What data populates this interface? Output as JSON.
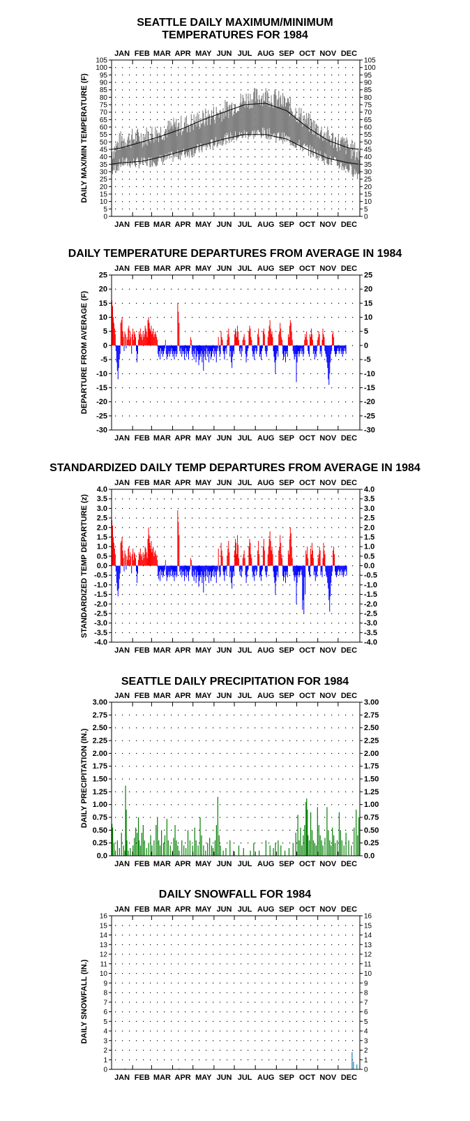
{
  "months": [
    "JAN",
    "FEB",
    "MAR",
    "APR",
    "MAY",
    "JUN",
    "JUL",
    "AUG",
    "SEP",
    "OCT",
    "NOV",
    "DEC"
  ],
  "colors": {
    "maxmin_band": "#808080",
    "normals": "#000000",
    "positive": "#ff0000",
    "negative": "#0000ff",
    "precip": "#008000",
    "snow": "#1f7fb0",
    "grid_dots": "#000000"
  },
  "chart_data": [
    {
      "id": "maxmin",
      "type": "area",
      "title_lines": [
        "SEATTLE DAILY MAXIMUM/MINIMUM",
        "TEMPERATURES FOR 1984"
      ],
      "ylabel": "DAILY MAX/MIN TEMPERATURE (F)",
      "xlabel": "",
      "ylim": [
        0,
        105
      ],
      "yticks": [
        0,
        5,
        10,
        15,
        20,
        25,
        30,
        35,
        40,
        45,
        50,
        55,
        60,
        65,
        70,
        75,
        80,
        85,
        90,
        95,
        100,
        105
      ],
      "x_anchor_days": [
        1,
        15,
        46,
        75,
        106,
        136,
        167,
        197,
        228,
        259,
        289,
        320,
        350,
        366
      ],
      "daily_max_anchor": [
        42,
        50,
        52,
        56,
        60,
        64,
        70,
        77,
        80,
        74,
        62,
        52,
        45,
        40
      ],
      "daily_min_anchor": [
        30,
        36,
        36,
        38,
        42,
        46,
        52,
        55,
        56,
        52,
        45,
        38,
        32,
        28
      ],
      "normal_high_anchor": [
        45,
        46,
        50,
        54,
        59,
        65,
        70,
        75,
        76,
        71,
        60,
        51,
        46,
        45
      ],
      "normal_low_anchor": [
        35,
        36,
        37,
        40,
        44,
        48,
        52,
        55,
        55,
        52,
        45,
        39,
        36,
        35
      ],
      "grid": true
    },
    {
      "id": "departures",
      "type": "bar",
      "title": "DAILY TEMPERATURE DEPARTURES FROM AVERAGE IN 1984",
      "ylabel": "DEPARTURE FROM AVERAGE (F)",
      "ylim": [
        -30,
        25
      ],
      "yticks": [
        -30,
        -25,
        -20,
        -15,
        -10,
        -5,
        0,
        5,
        10,
        15,
        20,
        25
      ],
      "values": [
        16,
        14,
        10,
        8,
        6,
        4,
        -2,
        -6,
        -9,
        -12,
        -8,
        -5,
        -3,
        8,
        9,
        10,
        5,
        3,
        -2,
        5,
        4,
        -1,
        3,
        2,
        6,
        7,
        2,
        5,
        3,
        -3,
        4,
        6,
        2,
        5,
        4,
        3,
        -2,
        -6,
        -3,
        2,
        5,
        4,
        6,
        3,
        4,
        2,
        5,
        3,
        4,
        7,
        6,
        5,
        3,
        9,
        10,
        8,
        6,
        5,
        7,
        4,
        5,
        6,
        3,
        4,
        5,
        4,
        3,
        2,
        -3,
        -4,
        -2,
        -5,
        -1,
        -3,
        -2,
        -4,
        -3,
        -2,
        -1,
        2,
        -3,
        -5,
        -4,
        -3,
        -2,
        -4,
        -3,
        -2,
        -1,
        -3,
        -4,
        -2,
        -5,
        -3,
        -2,
        -4,
        -3,
        15,
        12,
        8,
        -2,
        -3,
        -1,
        -4,
        -2,
        -3,
        -2,
        -5,
        -3,
        -1,
        -4,
        -2,
        -3,
        -5,
        -2,
        -1,
        3,
        2,
        -3,
        -4,
        -2,
        -5,
        -3,
        -1,
        -6,
        -4,
        -2,
        -3,
        -7,
        -5,
        -3,
        -4,
        -2,
        -6,
        -3,
        -9,
        -4,
        -2,
        -5,
        -3,
        -1,
        -4,
        -2,
        -6,
        -3,
        -2,
        -5,
        -4,
        -2,
        -3,
        -1,
        -4,
        -2,
        -3,
        -6,
        -2,
        -1,
        3,
        -2,
        -4,
        -3,
        5,
        3,
        2,
        -2,
        -3,
        -5,
        -2,
        -1,
        -3,
        2,
        4,
        6,
        3,
        -4,
        -2,
        -6,
        -8,
        -4,
        -2,
        -3,
        4,
        6,
        5,
        3,
        7,
        5,
        2,
        -2,
        -3,
        -1,
        -4,
        -2,
        2,
        3,
        4,
        2,
        -3,
        -6,
        -4,
        -2,
        -1,
        5,
        7,
        6,
        3,
        2,
        -2,
        -4,
        -3,
        -5,
        -2,
        -1,
        -3,
        -2,
        4,
        6,
        3,
        -4,
        -3,
        -5,
        -2,
        -1,
        5,
        6,
        4,
        -2,
        -3,
        -4,
        -2,
        3,
        5,
        7,
        9,
        6,
        4,
        5,
        3,
        -2,
        -4,
        -6,
        -10,
        -5,
        -3,
        -2,
        -4,
        4,
        5,
        8,
        6,
        3,
        2,
        -3,
        -5,
        -4,
        -2,
        -6,
        -3,
        -2,
        -4,
        4,
        3,
        7,
        9,
        8,
        5,
        2,
        -2,
        -3,
        -5,
        -4,
        -3,
        -13,
        -6,
        -3,
        -2,
        -4,
        -3,
        -2,
        -1,
        -3,
        -2,
        -4,
        -3,
        2,
        4,
        3,
        5,
        2,
        -2,
        -3,
        -4,
        4,
        3,
        6,
        4,
        2,
        -3,
        -2,
        -5,
        -3,
        -4,
        -2,
        2,
        3,
        5,
        4,
        -3,
        -2,
        -4,
        2,
        6,
        4,
        3,
        -2,
        -3,
        -4,
        -6,
        -8,
        -12,
        -14,
        -10,
        -6,
        -3,
        -2,
        4,
        5,
        3,
        -2,
        -3,
        -4,
        -3,
        -2,
        -1,
        -2,
        -3,
        -2,
        -1,
        -3,
        -2,
        -4,
        -3,
        -2,
        -1,
        -2,
        -3
      ],
      "grid": true
    },
    {
      "id": "standardized",
      "type": "bar",
      "title": "STANDARDIZED DAILY TEMP DEPARTURES FROM AVERAGE IN 1984",
      "ylabel": "STANDARDIZED TEMP DEPARTURE (z)",
      "ylim": [
        -4.0,
        4.0
      ],
      "yticks": [
        -4.0,
        -3.5,
        -3.0,
        -2.5,
        -2.0,
        -1.5,
        -1.0,
        -0.5,
        0.0,
        0.5,
        1.0,
        1.5,
        2.0,
        2.5,
        3.0,
        3.5,
        4.0
      ],
      "values": [
        2.4,
        2.1,
        1.5,
        1.2,
        0.9,
        0.6,
        -0.3,
        -0.9,
        -1.3,
        -1.6,
        -1.2,
        -0.7,
        -0.4,
        1.2,
        1.3,
        1.5,
        0.8,
        0.4,
        -0.3,
        0.8,
        0.6,
        -0.2,
        0.5,
        0.3,
        0.9,
        1.0,
        0.3,
        0.7,
        0.5,
        -0.4,
        0.6,
        0.9,
        0.3,
        0.7,
        0.6,
        0.4,
        -0.3,
        -0.9,
        -0.4,
        0.3,
        0.7,
        0.6,
        0.9,
        0.5,
        0.6,
        0.3,
        0.7,
        0.4,
        0.6,
        1.0,
        0.9,
        0.7,
        0.4,
        1.4,
        2.0,
        1.6,
        1.2,
        0.9,
        1.3,
        0.7,
        0.9,
        1.0,
        0.5,
        0.7,
        0.8,
        0.6,
        0.5,
        0.3,
        -0.5,
        -0.7,
        -0.3,
        -0.8,
        -0.2,
        -0.5,
        -0.3,
        -0.6,
        -0.5,
        -0.3,
        -0.2,
        0.3,
        -0.5,
        -0.8,
        -0.6,
        -0.5,
        -0.3,
        -0.6,
        -0.5,
        -0.3,
        -0.2,
        -0.5,
        -0.6,
        -0.3,
        -0.8,
        -0.5,
        -0.3,
        -0.6,
        -0.5,
        2.9,
        2.3,
        1.6,
        -0.3,
        -0.5,
        -0.2,
        -0.6,
        -0.3,
        -0.5,
        -0.3,
        -0.8,
        -0.5,
        -0.2,
        -0.6,
        -0.3,
        -0.5,
        -0.8,
        -0.3,
        -0.2,
        0.4,
        0.3,
        -0.5,
        -0.6,
        -0.3,
        -0.8,
        -0.5,
        -0.2,
        -0.9,
        -0.6,
        -0.3,
        -0.5,
        -1.1,
        -0.8,
        -0.5,
        -0.6,
        -0.3,
        -0.9,
        -0.5,
        -1.4,
        -0.6,
        -0.3,
        -0.8,
        -0.5,
        -0.2,
        -0.6,
        -0.3,
        -0.9,
        -0.5,
        -0.3,
        -0.8,
        -0.6,
        -0.3,
        -0.5,
        -0.2,
        -0.6,
        -0.3,
        -0.5,
        -0.9,
        -0.3,
        -0.2,
        0.9,
        -0.3,
        -0.6,
        -0.5,
        1.2,
        0.8,
        0.5,
        -0.3,
        -0.5,
        -0.8,
        -0.3,
        -0.2,
        -0.5,
        0.5,
        0.9,
        1.3,
        0.7,
        -0.6,
        -0.3,
        -0.9,
        -1.2,
        -0.6,
        -0.3,
        -0.5,
        0.8,
        1.4,
        1.2,
        0.6,
        1.6,
        1.1,
        0.4,
        -0.3,
        -0.5,
        -0.2,
        -0.6,
        -0.3,
        0.4,
        0.6,
        0.8,
        0.4,
        -0.5,
        -0.9,
        -0.6,
        -0.3,
        -0.2,
        1.0,
        1.4,
        1.2,
        0.6,
        0.4,
        -0.3,
        -0.6,
        -0.5,
        -0.8,
        -0.3,
        -0.2,
        -0.5,
        -0.3,
        0.8,
        1.3,
        0.6,
        -0.6,
        -0.5,
        -0.8,
        -0.3,
        -0.2,
        1.0,
        1.4,
        0.8,
        -0.3,
        -0.5,
        -0.6,
        -0.3,
        0.6,
        1.0,
        1.4,
        1.8,
        1.3,
        0.8,
        1.0,
        0.6,
        -0.3,
        -0.6,
        -0.9,
        -1.5,
        -0.8,
        -0.5,
        -0.3,
        -0.6,
        0.8,
        1.0,
        1.6,
        1.2,
        0.6,
        0.4,
        -0.5,
        -0.8,
        -0.6,
        -0.3,
        -0.9,
        -0.5,
        -0.3,
        -0.6,
        0.8,
        0.6,
        1.4,
        2.0,
        1.7,
        1.0,
        0.4,
        -0.3,
        -0.5,
        -0.8,
        -0.6,
        -0.5,
        -2.0,
        -0.9,
        -0.5,
        -0.3,
        -0.6,
        -0.5,
        -0.3,
        -0.2,
        -0.5,
        -2.3,
        -1.8,
        -2.5,
        -0.6,
        -1.5,
        0.8,
        0.6,
        1.0,
        0.4,
        -0.3,
        -0.5,
        -0.6,
        0.9,
        0.6,
        1.2,
        0.8,
        0.4,
        -0.5,
        -0.3,
        -0.8,
        -0.5,
        -0.6,
        -0.3,
        0.4,
        0.6,
        1.0,
        0.8,
        -0.5,
        -0.3,
        -0.6,
        0.4,
        1.2,
        0.8,
        0.6,
        -0.3,
        -0.5,
        -0.6,
        -0.9,
        -1.2,
        -1.8,
        -2.4,
        -1.6,
        -0.9,
        -0.5,
        -0.3,
        0.8,
        1.0,
        0.6,
        -0.3,
        -0.5,
        -0.6,
        -0.5,
        -0.3,
        -0.2,
        -0.3,
        -0.5,
        -0.3,
        -0.2,
        -0.5,
        -0.3,
        -0.6,
        -0.5,
        -0.3,
        -0.2,
        -0.3,
        -0.5
      ],
      "grid": true
    },
    {
      "id": "precip",
      "type": "bar",
      "title": "SEATTLE DAILY PRECIPITATION FOR 1984",
      "ylabel": "DAILY PRECIPITATION (IN.)",
      "ylim": [
        0,
        3.0
      ],
      "yticks": [
        0.0,
        0.25,
        0.5,
        0.75,
        1.0,
        1.25,
        1.5,
        1.75,
        2.0,
        2.25,
        2.5,
        2.75,
        3.0
      ],
      "ytick_labels": [
        "0.0",
        "0.25",
        "0.50",
        "0.75",
        "1.00",
        "1.25",
        "1.50",
        "1.75",
        "2.00",
        "2.25",
        "2.50",
        "2.75",
        "3.00"
      ],
      "events": [
        [
          1,
          0.62
        ],
        [
          2,
          0.55
        ],
        [
          4,
          0.25
        ],
        [
          6,
          0.1
        ],
        [
          9,
          0.3
        ],
        [
          12,
          0.15
        ],
        [
          15,
          0.45
        ],
        [
          18,
          0.2
        ],
        [
          20,
          0.1
        ],
        [
          21,
          1.37
        ],
        [
          22,
          0.9
        ],
        [
          23,
          0.3
        ],
        [
          25,
          0.1
        ],
        [
          28,
          0.15
        ],
        [
          32,
          0.2
        ],
        [
          34,
          0.35
        ],
        [
          36,
          0.55
        ],
        [
          38,
          0.45
        ],
        [
          40,
          0.75
        ],
        [
          41,
          0.3
        ],
        [
          43,
          0.2
        ],
        [
          45,
          0.45
        ],
        [
          47,
          0.6
        ],
        [
          49,
          0.3
        ],
        [
          52,
          0.15
        ],
        [
          55,
          0.25
        ],
        [
          58,
          0.4
        ],
        [
          60,
          0.2
        ],
        [
          63,
          0.3
        ],
        [
          66,
          0.6
        ],
        [
          68,
          0.75
        ],
        [
          70,
          0.3
        ],
        [
          72,
          0.2
        ],
        [
          74,
          0.5
        ],
        [
          77,
          0.25
        ],
        [
          79,
          0.4
        ],
        [
          82,
          0.72
        ],
        [
          84,
          0.3
        ],
        [
          87,
          0.2
        ],
        [
          90,
          0.1
        ],
        [
          92,
          0.35
        ],
        [
          94,
          0.6
        ],
        [
          96,
          0.3
        ],
        [
          98,
          0.2
        ],
        [
          100,
          0.1
        ],
        [
          104,
          0.3
        ],
        [
          107,
          0.2
        ],
        [
          110,
          0.15
        ],
        [
          113,
          0.5
        ],
        [
          116,
          0.3
        ],
        [
          120,
          0.2
        ],
        [
          123,
          0.55
        ],
        [
          125,
          0.3
        ],
        [
          128,
          0.2
        ],
        [
          131,
          0.75
        ],
        [
          133,
          0.4
        ],
        [
          136,
          0.2
        ],
        [
          139,
          0.1
        ],
        [
          142,
          0.25
        ],
        [
          145,
          0.35
        ],
        [
          148,
          0.2
        ],
        [
          150,
          0.15
        ],
        [
          153,
          0.3
        ],
        [
          155,
          0.6
        ],
        [
          157,
          1.15
        ],
        [
          159,
          0.4
        ],
        [
          161,
          0.2
        ],
        [
          165,
          0.1
        ],
        [
          169,
          0.15
        ],
        [
          175,
          0.3
        ],
        [
          180,
          0.1
        ],
        [
          188,
          0.2
        ],
        [
          195,
          0.15
        ],
        [
          205,
          0.1
        ],
        [
          210,
          0.25
        ],
        [
          218,
          0.1
        ],
        [
          228,
          0.3
        ],
        [
          234,
          0.2
        ],
        [
          239,
          0.15
        ],
        [
          242,
          0.25
        ],
        [
          246,
          0.3
        ],
        [
          250,
          0.2
        ],
        [
          256,
          0.1
        ],
        [
          262,
          0.15
        ],
        [
          268,
          0.25
        ],
        [
          272,
          0.45
        ],
        [
          275,
          0.8
        ],
        [
          277,
          0.3
        ],
        [
          279,
          0.55
        ],
        [
          281,
          0.2
        ],
        [
          283,
          0.4
        ],
        [
          285,
          0.6
        ],
        [
          287,
          1.05
        ],
        [
          288,
          1.12
        ],
        [
          289,
          0.9
        ],
        [
          290,
          0.4
        ],
        [
          292,
          0.3
        ],
        [
          294,
          0.85
        ],
        [
          296,
          0.5
        ],
        [
          298,
          0.3
        ],
        [
          300,
          0.25
        ],
        [
          302,
          0.2
        ],
        [
          304,
          0.95
        ],
        [
          306,
          0.6
        ],
        [
          308,
          0.4
        ],
        [
          310,
          0.3
        ],
        [
          312,
          0.2
        ],
        [
          315,
          0.35
        ],
        [
          318,
          0.95
        ],
        [
          320,
          0.5
        ],
        [
          322,
          0.3
        ],
        [
          324,
          0.2
        ],
        [
          326,
          0.55
        ],
        [
          328,
          0.4
        ],
        [
          330,
          0.25
        ],
        [
          333,
          0.3
        ],
        [
          336,
          0.85
        ],
        [
          338,
          0.5
        ],
        [
          340,
          0.3
        ],
        [
          343,
          0.2
        ],
        [
          346,
          0.45
        ],
        [
          350,
          0.3
        ],
        [
          354,
          0.2
        ],
        [
          358,
          0.55
        ],
        [
          361,
          0.9
        ],
        [
          363,
          0.4
        ],
        [
          365,
          0.75
        ]
      ],
      "grid": true
    },
    {
      "id": "snow",
      "type": "bar",
      "title": "DAILY SNOWFALL FOR 1984",
      "ylabel": "DAILY SNOWFALL (IN.)",
      "ylim": [
        0,
        16
      ],
      "yticks": [
        0,
        1,
        2,
        3,
        4,
        5,
        6,
        7,
        8,
        9,
        10,
        11,
        12,
        13,
        14,
        15,
        16
      ],
      "events": [
        [
          20,
          0.1
        ],
        [
          100,
          0.1
        ],
        [
          355,
          1.8
        ],
        [
          357,
          0.8
        ],
        [
          362,
          0.5
        ]
      ],
      "grid": true
    }
  ]
}
